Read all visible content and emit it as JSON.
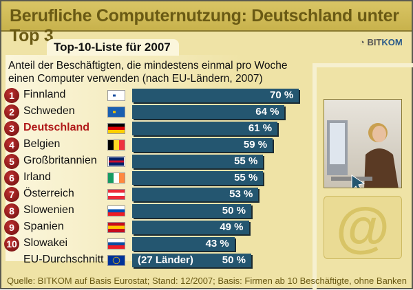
{
  "title": "Berufliche Computernutzung: Deutschland unter Top 3",
  "tab": "Top-10-Liste für 2007",
  "logo": {
    "pre": "BIT",
    "post": "KOM"
  },
  "subtitle_line1": "Anteil der Beschäftigten, die mindestens einmal pro Woche",
  "subtitle_line2": "einen Computer verwenden (nach EU-Ländern, 2007)",
  "source": "Quelle: BITKOM auf Basis Eurostat; Stand: 12/2007; Basis: Firmen ab 10 Beschäftigte, ohne Banken",
  "at_symbol": "@",
  "colors": {
    "bar": "#245670",
    "highlight": "#b01818",
    "header": "#c8b24c"
  },
  "chart_data": {
    "type": "bar",
    "orientation": "horizontal",
    "unit": "%",
    "rows": [
      {
        "rank": "1",
        "country": "Finnland",
        "value": 70,
        "label": "70 %",
        "flag": [
          "#ffffff",
          "#1a4fa0"
        ],
        "flagtype": "nordic"
      },
      {
        "rank": "2",
        "country": "Schweden",
        "value": 64,
        "label": "64 %",
        "flag": [
          "#1a5fb0",
          "#f5c400"
        ],
        "flagtype": "nordic"
      },
      {
        "rank": "3",
        "country": "Deutschland",
        "value": 61,
        "label": "61 %",
        "flag": [
          "#000000",
          "#dd0000",
          "#ffce00"
        ],
        "flagtype": "h",
        "highlight": true
      },
      {
        "rank": "4",
        "country": "Belgien",
        "value": 59,
        "label": "59 %",
        "flag": [
          "#000000",
          "#fdda24",
          "#ef3340"
        ],
        "flagtype": "v"
      },
      {
        "rank": "5",
        "country": "Großbritannien",
        "value": 55,
        "label": "55 %",
        "flag": [
          "#012169",
          "#ffffff",
          "#c8102e"
        ],
        "flagtype": "uk"
      },
      {
        "rank": "6",
        "country": "Irland",
        "value": 55,
        "label": "55 %",
        "flag": [
          "#169b62",
          "#ffffff",
          "#ff883e"
        ],
        "flagtype": "v"
      },
      {
        "rank": "7",
        "country": "Österreich",
        "value": 53,
        "label": "53 %",
        "flag": [
          "#ed2939",
          "#ffffff",
          "#ed2939"
        ],
        "flagtype": "h"
      },
      {
        "rank": "8",
        "country": "Slowenien",
        "value": 50,
        "label": "50 %",
        "flag": [
          "#ffffff",
          "#0050b5",
          "#ed1c24"
        ],
        "flagtype": "h"
      },
      {
        "rank": "9",
        "country": "Spanien",
        "value": 49,
        "label": "49 %",
        "flag": [
          "#c60b1e",
          "#ffc400",
          "#c60b1e"
        ],
        "flagtype": "h"
      },
      {
        "rank": "10",
        "country": "Slowakei",
        "value": 43,
        "label": "43 %",
        "flag": [
          "#ffffff",
          "#0b4ea2",
          "#ee1c25"
        ],
        "flagtype": "h"
      },
      {
        "rank": "",
        "country": "EU-Durchschnitt",
        "value": 50,
        "label": "50 %",
        "note": "(27 Länder)",
        "flag": [
          "#003399",
          "#ffcc00"
        ],
        "flagtype": "eu"
      }
    ]
  }
}
